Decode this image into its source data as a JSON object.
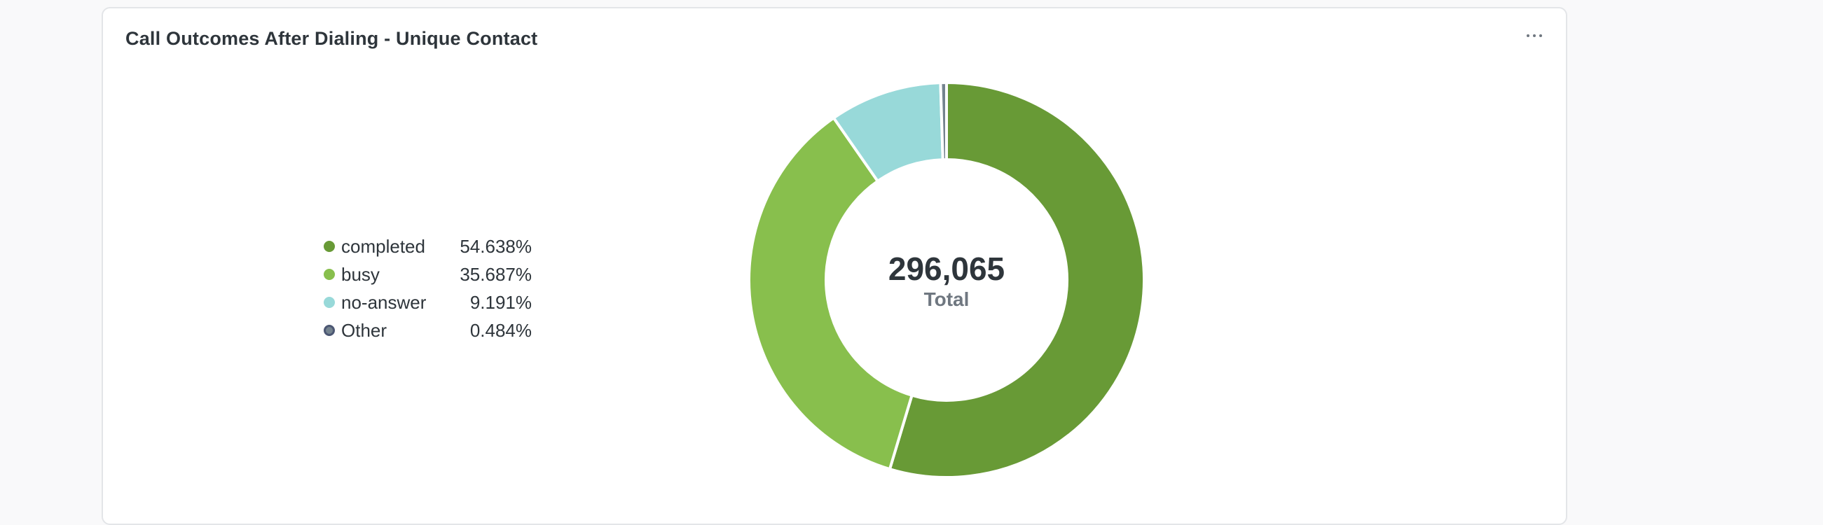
{
  "card": {
    "title": "Call Outcomes After Dialing - Unique Contact",
    "menu_icon": "ellipsis-horizontal-icon"
  },
  "chart_data": {
    "type": "pie",
    "donut": true,
    "total": "296,065",
    "total_label": "Total",
    "categories": [
      "completed",
      "busy",
      "no-answer",
      "Other"
    ],
    "values": [
      54.638,
      35.687,
      9.191,
      0.484
    ],
    "value_labels": [
      "54.638%",
      "35.687%",
      "9.191%",
      "0.484%"
    ],
    "colors": [
      "#689a36",
      "#88bf4d",
      "#98d9d9",
      "#74838f"
    ],
    "legend_position": "left"
  }
}
